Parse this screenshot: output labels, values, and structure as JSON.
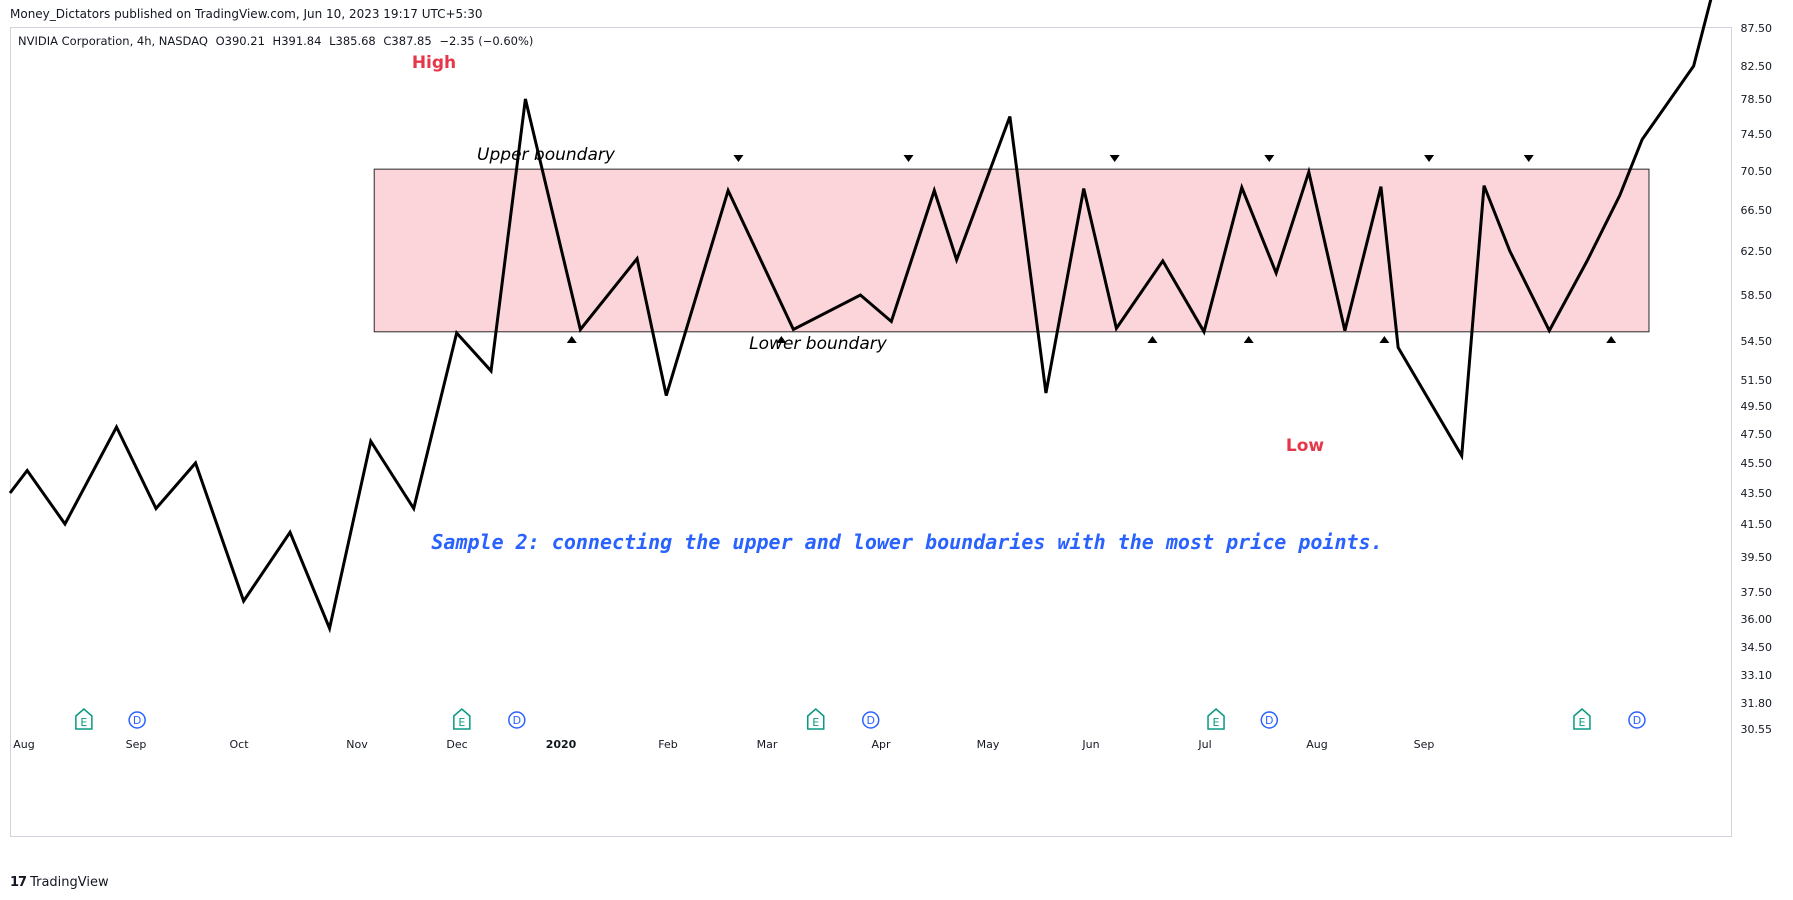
{
  "publisher_line": "Money_Dictators published on TradingView.com, Jun 10, 2023 19:17 UTC+5:30",
  "symbol_info": {
    "name": "NVIDIA Corporation, 4h, NASDAQ",
    "open": "O390.21",
    "high": "H391.84",
    "low": "L385.68",
    "close": "C387.85",
    "change": "−2.35 (−0.60%)"
  },
  "footer": {
    "brand": "TradingView",
    "logo": "17"
  },
  "colors": {
    "price_line": "#000000",
    "range_fill": "#fcd5da",
    "range_border": "#2a2a2a",
    "high_low_label": "#e5364a",
    "caption": "#2962ff",
    "earnings_badge": "#089981",
    "dividend_badge": "#2962ff"
  },
  "chart_data": {
    "type": "line",
    "series": [
      {
        "x": [
          0,
          1,
          3.2,
          6.2,
          8.5,
          10.8,
          13.6,
          16.3,
          18.6,
          21,
          23.5,
          26,
          28,
          30,
          33.2,
          36.5,
          38.2,
          41.8,
          45.6,
          49.5,
          51.3,
          53.8,
          55.1,
          58.2,
          60.3,
          62.5,
          64.4,
          67.1,
          69.5,
          71.7,
          73.7,
          75.6,
          77.7,
          79.8,
          80.8,
          84.5,
          85.8,
          87.3,
          89.6,
          91.8,
          93.7,
          95,
          98,
          100
        ],
        "y": [
          43.5,
          45,
          41.5,
          48,
          42.5,
          45.5,
          37,
          41,
          35.5,
          47,
          42.5,
          55.2,
          52.2,
          78.5,
          55.5,
          61.8,
          50.3,
          68.5,
          55.5,
          58.5,
          56.2,
          68.5,
          61.7,
          76.5,
          50.5,
          68.7,
          55.6,
          61.6,
          55.3,
          68.8,
          60.5,
          70.4,
          55.4,
          68.9,
          54,
          46,
          69,
          62.5,
          55.4,
          61.6,
          68,
          73.9,
          82.5,
          100
        ]
      }
    ],
    "x_axis_labels": [
      "Aug",
      "Sep",
      "Oct",
      "Nov",
      "Dec",
      "2020",
      "Feb",
      "Mar",
      "Apr",
      "May",
      "Jun",
      "Jul",
      "Aug",
      "Sep"
    ],
    "y_axis_labels": [
      "87.50",
      "82.50",
      "78.50",
      "74.50",
      "70.50",
      "66.50",
      "62.50",
      "58.50",
      "54.50",
      "51.50",
      "49.50",
      "47.50",
      "45.50",
      "43.50",
      "41.50",
      "39.50",
      "37.50",
      "36.00",
      "34.50",
      "33.10",
      "31.80",
      "30.55"
    ],
    "range_box": {
      "x_start": 21.2,
      "x_end": 95.4,
      "upper": 70.7,
      "lower": 55.3
    },
    "upper_marker_x": [
      42.4,
      52.3,
      64.3,
      73.3,
      82.6,
      88.4
    ],
    "lower_marker_x": [
      32.7,
      44.9,
      66.5,
      72.1,
      80,
      93.2
    ],
    "events": [
      {
        "type": "earnings",
        "label": "E",
        "x": 4.3
      },
      {
        "type": "dividend",
        "label": "D",
        "x": 7.4
      },
      {
        "type": "earnings",
        "label": "E",
        "x": 26.3
      },
      {
        "type": "dividend",
        "label": "D",
        "x": 29.5
      },
      {
        "type": "earnings",
        "label": "E",
        "x": 46.9
      },
      {
        "type": "dividend",
        "label": "D",
        "x": 50.1
      },
      {
        "type": "earnings",
        "label": "E",
        "x": 70.2
      },
      {
        "type": "dividend",
        "label": "D",
        "x": 73.3
      },
      {
        "type": "earnings",
        "label": "E",
        "x": 91.5
      },
      {
        "type": "dividend",
        "label": "D",
        "x": 94.7
      }
    ],
    "annotations": {
      "high": "High",
      "low": "Low",
      "upper_boundary": "Upper boundary",
      "lower_boundary": "Lower boundary",
      "caption": "Sample 2: connecting the upper and lower boundaries with the most price points."
    },
    "grid": false
  }
}
